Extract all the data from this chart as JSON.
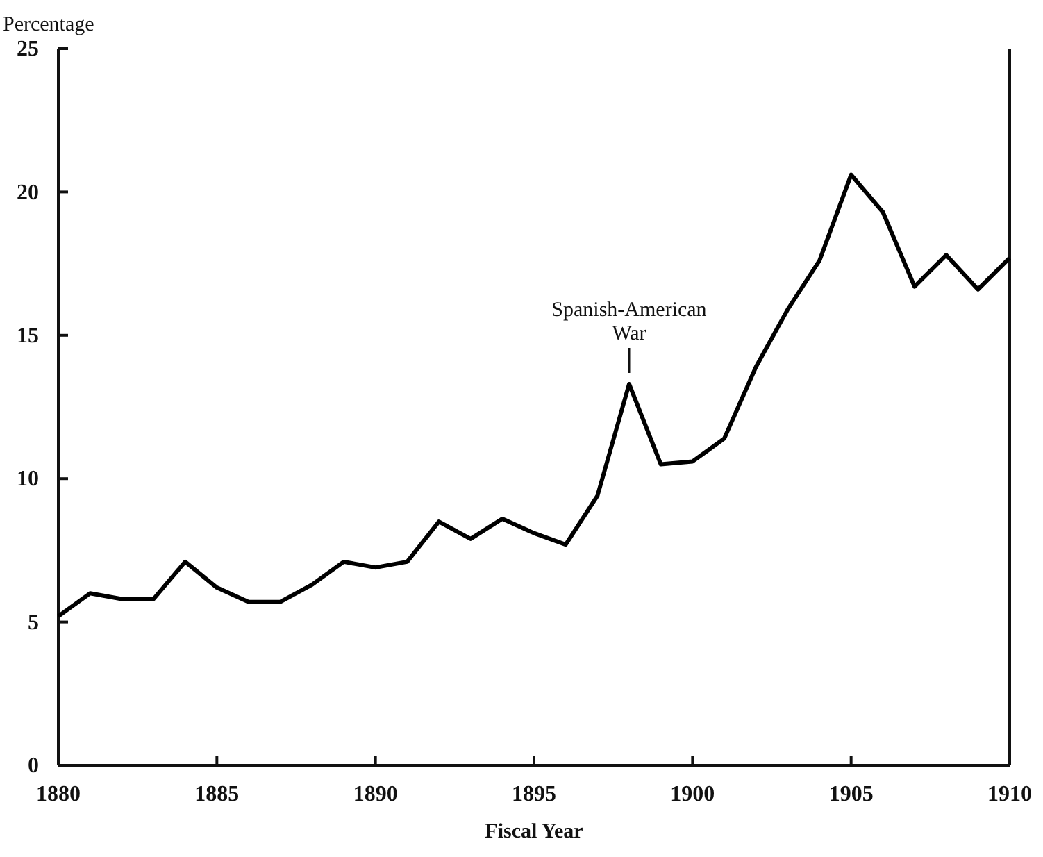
{
  "chart_data": {
    "type": "line",
    "ylabel": "Percentage",
    "xlabel": "Fiscal Year",
    "x": [
      1880,
      1881,
      1882,
      1883,
      1884,
      1885,
      1886,
      1887,
      1888,
      1889,
      1890,
      1891,
      1892,
      1893,
      1894,
      1895,
      1896,
      1897,
      1898,
      1899,
      1900,
      1901,
      1902,
      1903,
      1904,
      1905,
      1906,
      1907,
      1908,
      1909,
      1910
    ],
    "series": [
      {
        "color": "#000000",
        "values": [
          5.2,
          6.0,
          5.8,
          5.8,
          7.1,
          6.2,
          5.7,
          5.7,
          6.3,
          7.1,
          6.9,
          7.1,
          8.5,
          7.9,
          8.6,
          8.1,
          7.7,
          9.4,
          13.3,
          10.5,
          10.6,
          11.4,
          13.9,
          15.9,
          17.6,
          20.6,
          19.3,
          16.7,
          17.8,
          16.6,
          17.7
        ]
      }
    ],
    "xlim": [
      1880,
      1910
    ],
    "xticks": [
      1880,
      1885,
      1890,
      1895,
      1900,
      1905,
      1910
    ],
    "ylim": [
      0,
      25
    ],
    "yticks": [
      0,
      5,
      10,
      15,
      20,
      25
    ],
    "annotations": [
      {
        "text": "Spanish-American War",
        "x": 1898,
        "y": 13.3
      }
    ],
    "grid": false,
    "marker": "none",
    "line_style": "solid"
  }
}
